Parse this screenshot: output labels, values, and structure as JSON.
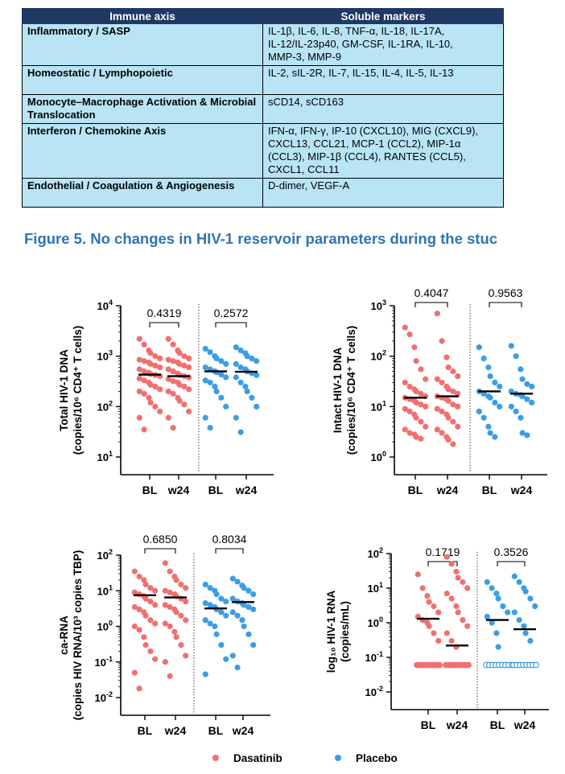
{
  "table": {
    "headers": [
      "Immune axis",
      "Soluble markers"
    ],
    "rows": [
      {
        "axis": "Inflammatory / SASP",
        "markers": [
          "IL-1β, IL-6, IL-8, TNF-α, IL-18, IL-17A,",
          " IL-12/IL-23p40, GM-CSF, IL-1RA, IL-10,",
          "MMP-3, MMP-9"
        ]
      },
      {
        "axis": "Homeostatic / Lymphopoietic",
        "markers": [
          "IL-2, sIL-2R, IL-7, IL-15, IL-4, IL-5, IL-13"
        ]
      },
      {
        "axis": "Monocyte–Macrophage Activation & Microbial Translocation",
        "markers": [
          "sCD14, sCD163"
        ]
      },
      {
        "axis": "Interferon / Chemokine Axis",
        "markers": [
          "IFN-α, IFN-γ, IP-10 (CXCL10), MIG (CXCL9),",
          "CXCL13, CCL21, MCP-1 (CCL2), MIP-1α",
          "(CCL3), MIP-1β (CCL4), RANTES (CCL5),",
          "CXCL1, CCL11"
        ]
      },
      {
        "axis": "Endothelial / Coagulation & Angiogenesis",
        "markers": [
          "D-dimer, VEGF-A"
        ]
      }
    ]
  },
  "figure_title": "Figure 5. No changes in HIV-1 reservoir parameters during the stuc",
  "legend": [
    "Dasatinib",
    "Placebo"
  ],
  "colors": {
    "Dasatinib": "#f07070",
    "Placebo": "#3b9ee5",
    "header_bg": "#1f3864",
    "cell_bg": "#b8e4f6",
    "title": "#2e74b5"
  },
  "chart_data": [
    {
      "type": "scatter",
      "scale": "log",
      "ylabel": [
        "Total HIV-1 DNA",
        "(copies/10⁶ CD4⁺ T cells)"
      ],
      "ylim": [
        1,
        4
      ],
      "yticks": [
        {
          "label": "10",
          "sup": "1",
          "exp": 1
        },
        {
          "label": "10",
          "sup": "2",
          "exp": 2
        },
        {
          "label": "10",
          "sup": "3",
          "exp": 3
        },
        {
          "label": "10",
          "sup": "4",
          "exp": 4
        }
      ],
      "categories": [
        "BL",
        "w24",
        "BL",
        "w24"
      ],
      "pvalues": [
        "0.4319",
        "0.2572"
      ],
      "series": [
        {
          "name": "Dasatinib",
          "BL": [
            2200,
            1700,
            1300,
            1150,
            1000,
            900,
            850,
            800,
            750,
            700,
            650,
            600,
            550,
            500,
            470,
            440,
            420,
            400,
            360,
            330,
            300,
            270,
            250,
            220,
            200,
            180,
            150,
            120,
            100,
            80,
            60,
            35
          ],
          "w24": [
            2200,
            1700,
            1300,
            1150,
            1000,
            900,
            850,
            800,
            750,
            700,
            650,
            600,
            550,
            500,
            450,
            420,
            400,
            380,
            350,
            320,
            300,
            270,
            250,
            220,
            200,
            180,
            150,
            130,
            110,
            80,
            60,
            38
          ],
          "median_BL": 430,
          "median_w24": 400
        },
        {
          "name": "Placebo",
          "BL": [
            1400,
            1200,
            1000,
            900,
            800,
            700,
            600,
            550,
            500,
            480,
            430,
            380,
            330,
            300,
            250,
            200,
            150,
            100,
            60,
            38
          ],
          "w24": [
            1500,
            1300,
            1150,
            1000,
            900,
            800,
            700,
            600,
            550,
            500,
            460,
            420,
            380,
            300,
            250,
            200,
            150,
            100,
            60,
            31
          ],
          "median_BL": 500,
          "median_w24": 490
        }
      ]
    },
    {
      "type": "scatter",
      "scale": "log",
      "ylabel": [
        "Intact HIV-1 DNA",
        "(copies/10⁶ CD4⁺ T cells)"
      ],
      "ylim": [
        0,
        3
      ],
      "yticks": [
        {
          "label": "10",
          "sup": "0",
          "exp": 0
        },
        {
          "label": "10",
          "sup": "1",
          "exp": 1
        },
        {
          "label": "10",
          "sup": "2",
          "exp": 2
        },
        {
          "label": "10",
          "sup": "3",
          "exp": 3
        }
      ],
      "categories": [
        "BL",
        "w24",
        "BL",
        "w24"
      ],
      "pvalues": [
        "0.4047",
        "0.9563"
      ],
      "series": [
        {
          "name": "Dasatinib",
          "BL": [
            370,
            270,
            150,
            80,
            55,
            35,
            30,
            25,
            22,
            20,
            18,
            16,
            15,
            14,
            13,
            12,
            11,
            10,
            9,
            8,
            7,
            6,
            5,
            4,
            3.5,
            3,
            2.8,
            2.5,
            2.3
          ],
          "w24": [
            700,
            200,
            95,
            60,
            50,
            40,
            35,
            30,
            25,
            22,
            20,
            18,
            16,
            15,
            14,
            13,
            11,
            10,
            9,
            8,
            7,
            6,
            5,
            4,
            3.5,
            3,
            2.5,
            2.2,
            1.8
          ],
          "median_BL": 15,
          "median_w24": 16
        },
        {
          "name": "Placebo",
          "BL": [
            150,
            90,
            60,
            40,
            30,
            25,
            20,
            18,
            16,
            15,
            12,
            10,
            8,
            6,
            4,
            3,
            2.5
          ],
          "w24": [
            160,
            100,
            55,
            35,
            28,
            25,
            20,
            18,
            17,
            16,
            14,
            12,
            10,
            8,
            6,
            3,
            2.7
          ],
          "median_BL": 20,
          "median_w24": 18
        }
      ]
    },
    {
      "type": "scatter",
      "scale": "log",
      "ylabel": [
        "ca-RNA",
        "(copies HIV RNA/10³ copies TBP)"
      ],
      "ylim": [
        -2,
        2
      ],
      "yticks": [
        {
          "label": "10",
          "sup": "-2",
          "exp": -2
        },
        {
          "label": "10",
          "sup": "-1",
          "exp": -1
        },
        {
          "label": "10",
          "sup": "0",
          "exp": 0
        },
        {
          "label": "10",
          "sup": "1",
          "exp": 1
        },
        {
          "label": "10",
          "sup": "2",
          "exp": 2
        }
      ],
      "categories": [
        "BL",
        "w24",
        "BL",
        "w24"
      ],
      "pvalues": [
        "0.6850",
        "0.8034"
      ],
      "series": [
        {
          "name": "Dasatinib",
          "BL": [
            35,
            25,
            20,
            15,
            12,
            10,
            9,
            8,
            7,
            6,
            5,
            4,
            3.5,
            3,
            2.5,
            2,
            1.5,
            1.2,
            1,
            0.8,
            0.5,
            0.3,
            0.2,
            0.12,
            0.05,
            0.018
          ],
          "w24": [
            60,
            35,
            25,
            20,
            15,
            12,
            10,
            9,
            8,
            7,
            6,
            5,
            4,
            3.5,
            3,
            2.5,
            2,
            1.5,
            1.2,
            1,
            0.7,
            0.5,
            0.3,
            0.15,
            0.1,
            0.04
          ],
          "median_BL": 7.5,
          "median_w24": 6.5
        },
        {
          "name": "Placebo",
          "BL": [
            15,
            12,
            10,
            8,
            6,
            5,
            4.5,
            4,
            3.5,
            3,
            2.5,
            2,
            1.5,
            1.2,
            1,
            0.6,
            0.3,
            0.12,
            0.045
          ],
          "w24": [
            22,
            18,
            14,
            12,
            10,
            8,
            6,
            5,
            4.5,
            4,
            3.5,
            3,
            2.5,
            2,
            1.5,
            1,
            0.6,
            0.3,
            0.15,
            0.07
          ],
          "median_BL": 3.2,
          "median_w24": 4.8
        }
      ]
    },
    {
      "type": "scatter",
      "scale": "log",
      "ylabel": [
        "log₁₀ HIV-1 RNA",
        "(copies/mL)"
      ],
      "ylim": [
        -2,
        2
      ],
      "yticks": [
        {
          "label": "10",
          "sup": "-2",
          "exp": -2
        },
        {
          "label": "10",
          "sup": "-1",
          "exp": -1
        },
        {
          "label": "10",
          "sup": "0",
          "exp": 0
        },
        {
          "label": "10",
          "sup": "1",
          "exp": 1
        },
        {
          "label": "10",
          "sup": "2",
          "exp": 2
        }
      ],
      "categories": [
        "BL",
        "w24",
        "BL",
        "w24"
      ],
      "pvalues": [
        "0.1719",
        "0.3526"
      ],
      "series": [
        {
          "name": "Dasatinib",
          "BL": [
            25,
            10,
            6,
            4,
            3,
            2,
            1.5,
            1.2,
            1,
            0.8,
            0.5,
            0.3,
            0.06,
            0.06,
            0.06,
            0.06,
            0.06,
            0.06,
            0.06,
            0.06
          ],
          "w24": [
            80,
            50,
            30,
            20,
            15,
            10,
            7,
            5,
            3,
            2,
            1.2,
            0.8,
            0.5,
            0.3,
            0.2,
            0.06,
            0.06,
            0.06,
            0.06,
            0.06,
            0.06,
            0.06,
            0.06
          ],
          "median_BL": 1.3,
          "median_w24": 0.22
        },
        {
          "name": "Placebo",
          "BL": [
            15,
            10,
            7,
            5,
            3,
            2,
            1.5,
            1,
            0.5,
            0.2,
            0.06,
            0.06,
            0.06,
            0.06,
            0.06,
            0.06,
            0.06,
            0.06,
            0.06
          ],
          "w24": [
            22,
            15,
            10,
            8,
            5,
            3,
            2,
            1.2,
            0.8,
            0.5,
            0.3,
            0.06,
            0.06,
            0.06,
            0.06,
            0.06,
            0.06,
            0.06,
            0.06
          ],
          "median_BL": 1.2,
          "median_w24": 0.65
        }
      ]
    }
  ]
}
